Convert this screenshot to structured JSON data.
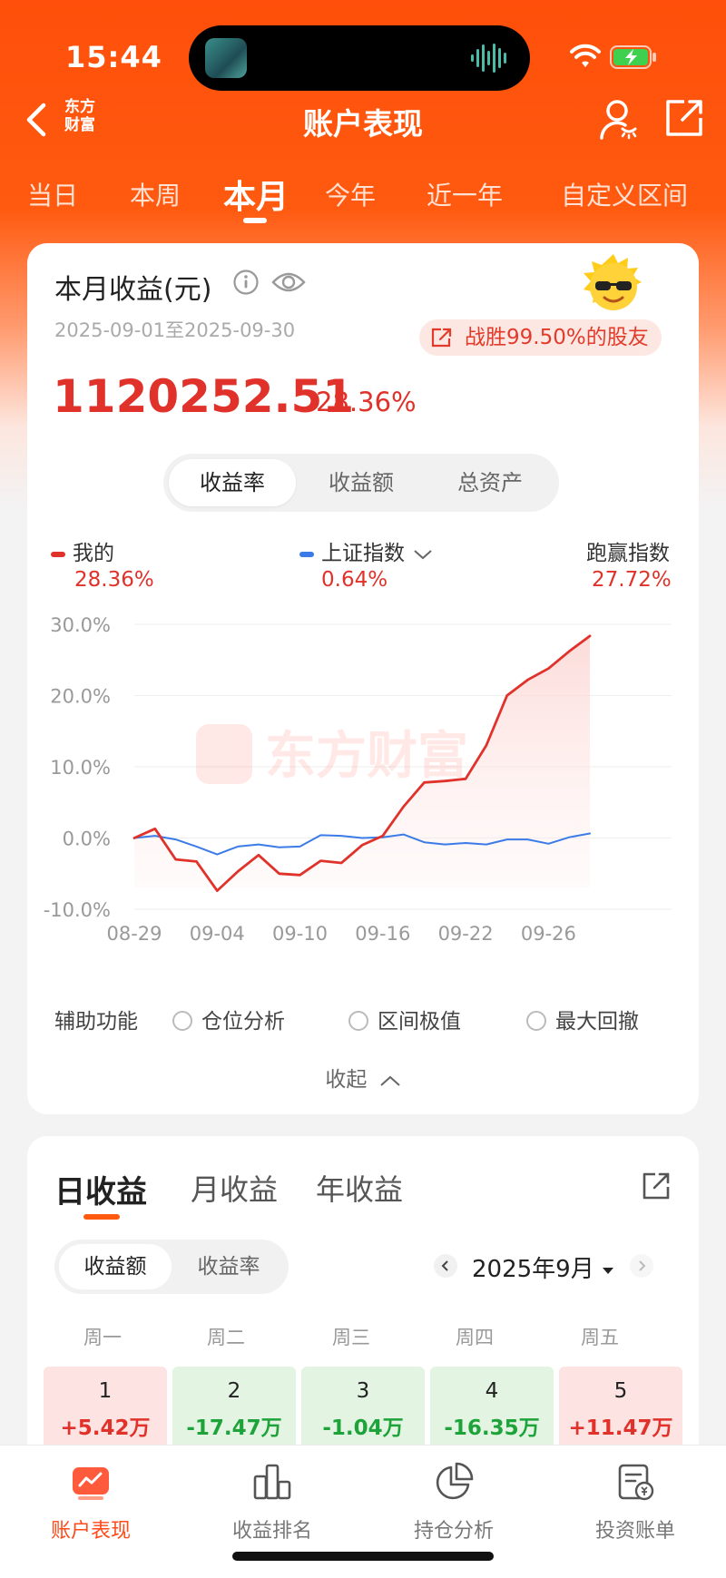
{
  "status_bar": {
    "time": "15:44"
  },
  "nav": {
    "title": "账户表现",
    "brand_logo": "东方\n财富"
  },
  "period_tabs": [
    {
      "label": "当日",
      "active": false
    },
    {
      "label": "本周",
      "active": false
    },
    {
      "label": "本月",
      "active": true
    },
    {
      "label": "今年",
      "active": false
    },
    {
      "label": "近一年",
      "active": false
    },
    {
      "label": "自定义区间",
      "active": false
    }
  ],
  "summary": {
    "title": "本月收益(元)",
    "date_range": "2025-09-01至2025-09-30",
    "beat_text": "战胜99.50%的股友",
    "amount": "1120252.51",
    "percent": "28.36%"
  },
  "chart_tabs": [
    {
      "label": "收益率",
      "active": true
    },
    {
      "label": "收益额",
      "active": false
    },
    {
      "label": "总资产",
      "active": false
    }
  ],
  "legend": {
    "mine": {
      "label": "我的",
      "value": "28.36%",
      "color": "#e0322a"
    },
    "index": {
      "label": "上证指数",
      "value": "0.64%",
      "color": "#3b7be8"
    },
    "outperform": {
      "label": "跑赢指数",
      "value": "27.72%"
    }
  },
  "watermark": "东方财富",
  "chart_data": {
    "type": "line",
    "x": [
      "08-29",
      "09-01",
      "09-02",
      "09-03",
      "09-04",
      "09-05",
      "09-08",
      "09-09",
      "09-10",
      "09-11",
      "09-12",
      "09-15",
      "09-16",
      "09-17",
      "09-18",
      "09-19",
      "09-22",
      "09-23",
      "09-24",
      "09-25",
      "09-26",
      "09-29",
      "09-30"
    ],
    "x_ticks": [
      "08-29",
      "09-04",
      "09-10",
      "09-16",
      "09-22",
      "09-26"
    ],
    "y_ticks": [
      "30.0%",
      "20.0%",
      "10.0%",
      "0.0%",
      "-10.0%"
    ],
    "ylim": [
      -10,
      30
    ],
    "series": [
      {
        "name": "我的",
        "color": "#e0322a",
        "values": [
          0.0,
          1.3,
          -3.0,
          -3.3,
          -7.4,
          -4.7,
          -2.4,
          -5.0,
          -5.2,
          -3.2,
          -3.5,
          -1.0,
          0.3,
          4.4,
          7.8,
          8.0,
          8.3,
          13.0,
          20.0,
          22.2,
          23.8,
          26.2,
          28.36
        ]
      },
      {
        "name": "上证指数",
        "color": "#3b7be8",
        "values": [
          0.0,
          0.3,
          -0.2,
          -1.2,
          -2.3,
          -1.2,
          -0.9,
          -1.3,
          -1.2,
          0.4,
          0.3,
          0.0,
          0.1,
          0.5,
          -0.6,
          -0.9,
          -0.7,
          -0.9,
          -0.2,
          -0.2,
          -0.8,
          0.1,
          0.64
        ]
      }
    ]
  },
  "aux": {
    "label": "辅助功能",
    "options": [
      "仓位分析",
      "区间极值",
      "最大回撤"
    ],
    "collapse": "收起"
  },
  "returns": {
    "tabs": [
      {
        "label": "日收益",
        "active": true
      },
      {
        "label": "月收益",
        "active": false
      },
      {
        "label": "年收益",
        "active": false
      }
    ],
    "seg": [
      {
        "label": "收益额",
        "active": true
      },
      {
        "label": "收益率",
        "active": false
      }
    ],
    "month": "2025年9月",
    "weekdays": [
      "周一",
      "周二",
      "周三",
      "周四",
      "周五"
    ],
    "days": [
      {
        "day": "1",
        "value": "+5.42万",
        "dir": "up"
      },
      {
        "day": "2",
        "value": "-17.47万",
        "dir": "down"
      },
      {
        "day": "3",
        "value": "-1.04万",
        "dir": "down"
      },
      {
        "day": "4",
        "value": "-16.35万",
        "dir": "down"
      },
      {
        "day": "5",
        "value": "+11.47万",
        "dir": "up"
      }
    ]
  },
  "bottom_nav": [
    {
      "label": "账户表现",
      "icon": "account-performance-icon",
      "active": true
    },
    {
      "label": "收益排名",
      "icon": "ranking-icon",
      "active": false
    },
    {
      "label": "持仓分析",
      "icon": "pie-chart-icon",
      "active": false
    },
    {
      "label": "投资账单",
      "icon": "bill-icon",
      "active": false
    }
  ]
}
